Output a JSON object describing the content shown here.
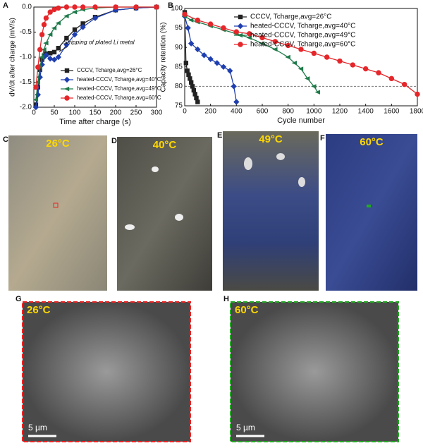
{
  "chart_data": [
    {
      "type": "line",
      "panel": "A",
      "x_label": "Time after charge (s)",
      "y_label": "dV/dt after charge (mV/s)",
      "annotation": "Stripping of plated Li metal",
      "xlim": [
        0,
        300
      ],
      "xticks": [
        0,
        50,
        100,
        150,
        200,
        250,
        300
      ],
      "ylim": [
        -2.0,
        0.0
      ],
      "yticks": [
        {
          "value": -2.0,
          "label": "-2.0"
        },
        -1.5,
        {
          "value": -1.0,
          "label": "-1.0"
        },
        -0.5,
        {
          "value": 0.0,
          "label": "0.0"
        }
      ],
      "legend": "lower right",
      "x": [
        5,
        10,
        15,
        20,
        25,
        30,
        40,
        50,
        60,
        80,
        100,
        120,
        150,
        200,
        250,
        300
      ],
      "series": [
        {
          "name": "CCCV, Tcharge,avg=26°C",
          "color": "#222222",
          "marker": "square",
          "values": [
            -1.95,
            -1.6,
            -1.25,
            -1.05,
            -0.97,
            -0.93,
            -0.92,
            -0.9,
            -0.82,
            -0.62,
            -0.45,
            -0.33,
            -0.2,
            -0.06,
            -0.02,
            0.0
          ]
        },
        {
          "name": "heated-CCCV, Tcharge,avg=40°C",
          "color": "#1f3fb0",
          "marker": "diamond",
          "values": [
            -2.0,
            -1.75,
            -1.4,
            -1.15,
            -1.0,
            -0.96,
            -1.03,
            -1.05,
            -1.0,
            -0.75,
            -0.55,
            -0.4,
            -0.22,
            -0.06,
            -0.02,
            0.0
          ]
        },
        {
          "name": "heated-CCCV, Tcharge,avg=49°C",
          "color": "#1f7a4a",
          "marker": "triangle",
          "values": [
            -1.85,
            -1.5,
            -1.2,
            -1.0,
            -0.85,
            -0.72,
            -0.55,
            -0.42,
            -0.32,
            -0.18,
            -0.1,
            -0.05,
            -0.02,
            0.0,
            0.0,
            0.0
          ]
        },
        {
          "name": "heated-CCCV, Tcharge,avg=60°C",
          "color": "#e5262a",
          "marker": "circle",
          "values": [
            -1.6,
            -1.2,
            -0.85,
            -0.55,
            -0.35,
            -0.22,
            -0.1,
            -0.05,
            -0.02,
            0.0,
            0.0,
            0.0,
            0.0,
            0.0,
            0.0,
            0.0
          ]
        }
      ]
    },
    {
      "type": "line",
      "panel": "B",
      "x_label": "Cycle number",
      "y_label": "Capacity retention (%)",
      "xlim": [
        0,
        1800
      ],
      "xticks": [
        0,
        200,
        400,
        600,
        800,
        1000,
        1200,
        1400,
        1600,
        1800
      ],
      "ylim": [
        75,
        100
      ],
      "yticks": [
        75,
        80,
        85,
        90,
        95,
        100
      ],
      "hline": 80,
      "legend": "upper right",
      "series": [
        {
          "name": "CCCV, Tcharge,avg=26°C",
          "color": "#222222",
          "marker": "square",
          "x": [
            0,
            10,
            20,
            30,
            40,
            50,
            60,
            70,
            80,
            90,
            100
          ],
          "values": [
            99,
            86,
            84,
            83,
            82,
            81,
            80,
            79,
            78,
            77,
            76
          ]
        },
        {
          "name": "heated-CCCV, Tcharge,avg=40°C",
          "color": "#1f3fb0",
          "marker": "diamond",
          "x": [
            0,
            25,
            50,
            100,
            150,
            200,
            250,
            300,
            350,
            380,
            400
          ],
          "values": [
            98,
            95,
            91,
            89.5,
            88,
            87,
            86,
            85,
            84,
            80,
            76
          ]
        },
        {
          "name": "heated-CCCV, Tcharge,avg=49°C",
          "color": "#1f7a4a",
          "marker": "triangle",
          "x": [
            0,
            50,
            100,
            200,
            300,
            400,
            500,
            600,
            700,
            800,
            850,
            900,
            950,
            1000,
            1030
          ],
          "values": [
            98,
            97,
            96.5,
            95.5,
            94.5,
            93.5,
            92.5,
            91,
            89.5,
            87.5,
            86,
            84.5,
            82,
            80,
            78.5
          ]
        },
        {
          "name": "heated-CCCV, Tcharge,avg=60°C",
          "color": "#e5262a",
          "marker": "circle",
          "x": [
            0,
            100,
            200,
            300,
            400,
            500,
            600,
            700,
            800,
            900,
            1000,
            1100,
            1200,
            1300,
            1400,
            1500,
            1600,
            1700,
            1800
          ],
          "values": [
            98.5,
            97,
            96,
            95,
            94,
            93.5,
            92.5,
            91.5,
            90.5,
            89.5,
            88.5,
            87.5,
            86.5,
            85.5,
            84.5,
            83.5,
            82,
            80.5,
            78
          ]
        }
      ]
    }
  ],
  "photos": [
    {
      "letter": "C",
      "label": "26°C"
    },
    {
      "letter": "D",
      "label": "40°C"
    },
    {
      "letter": "E",
      "label": "49°C"
    },
    {
      "letter": "F",
      "label": "60°C"
    }
  ],
  "sem": [
    {
      "letter": "G",
      "label": "26°C",
      "scale": "5 µm"
    },
    {
      "letter": "H",
      "label": "60°C",
      "scale": "5 µm"
    }
  ]
}
